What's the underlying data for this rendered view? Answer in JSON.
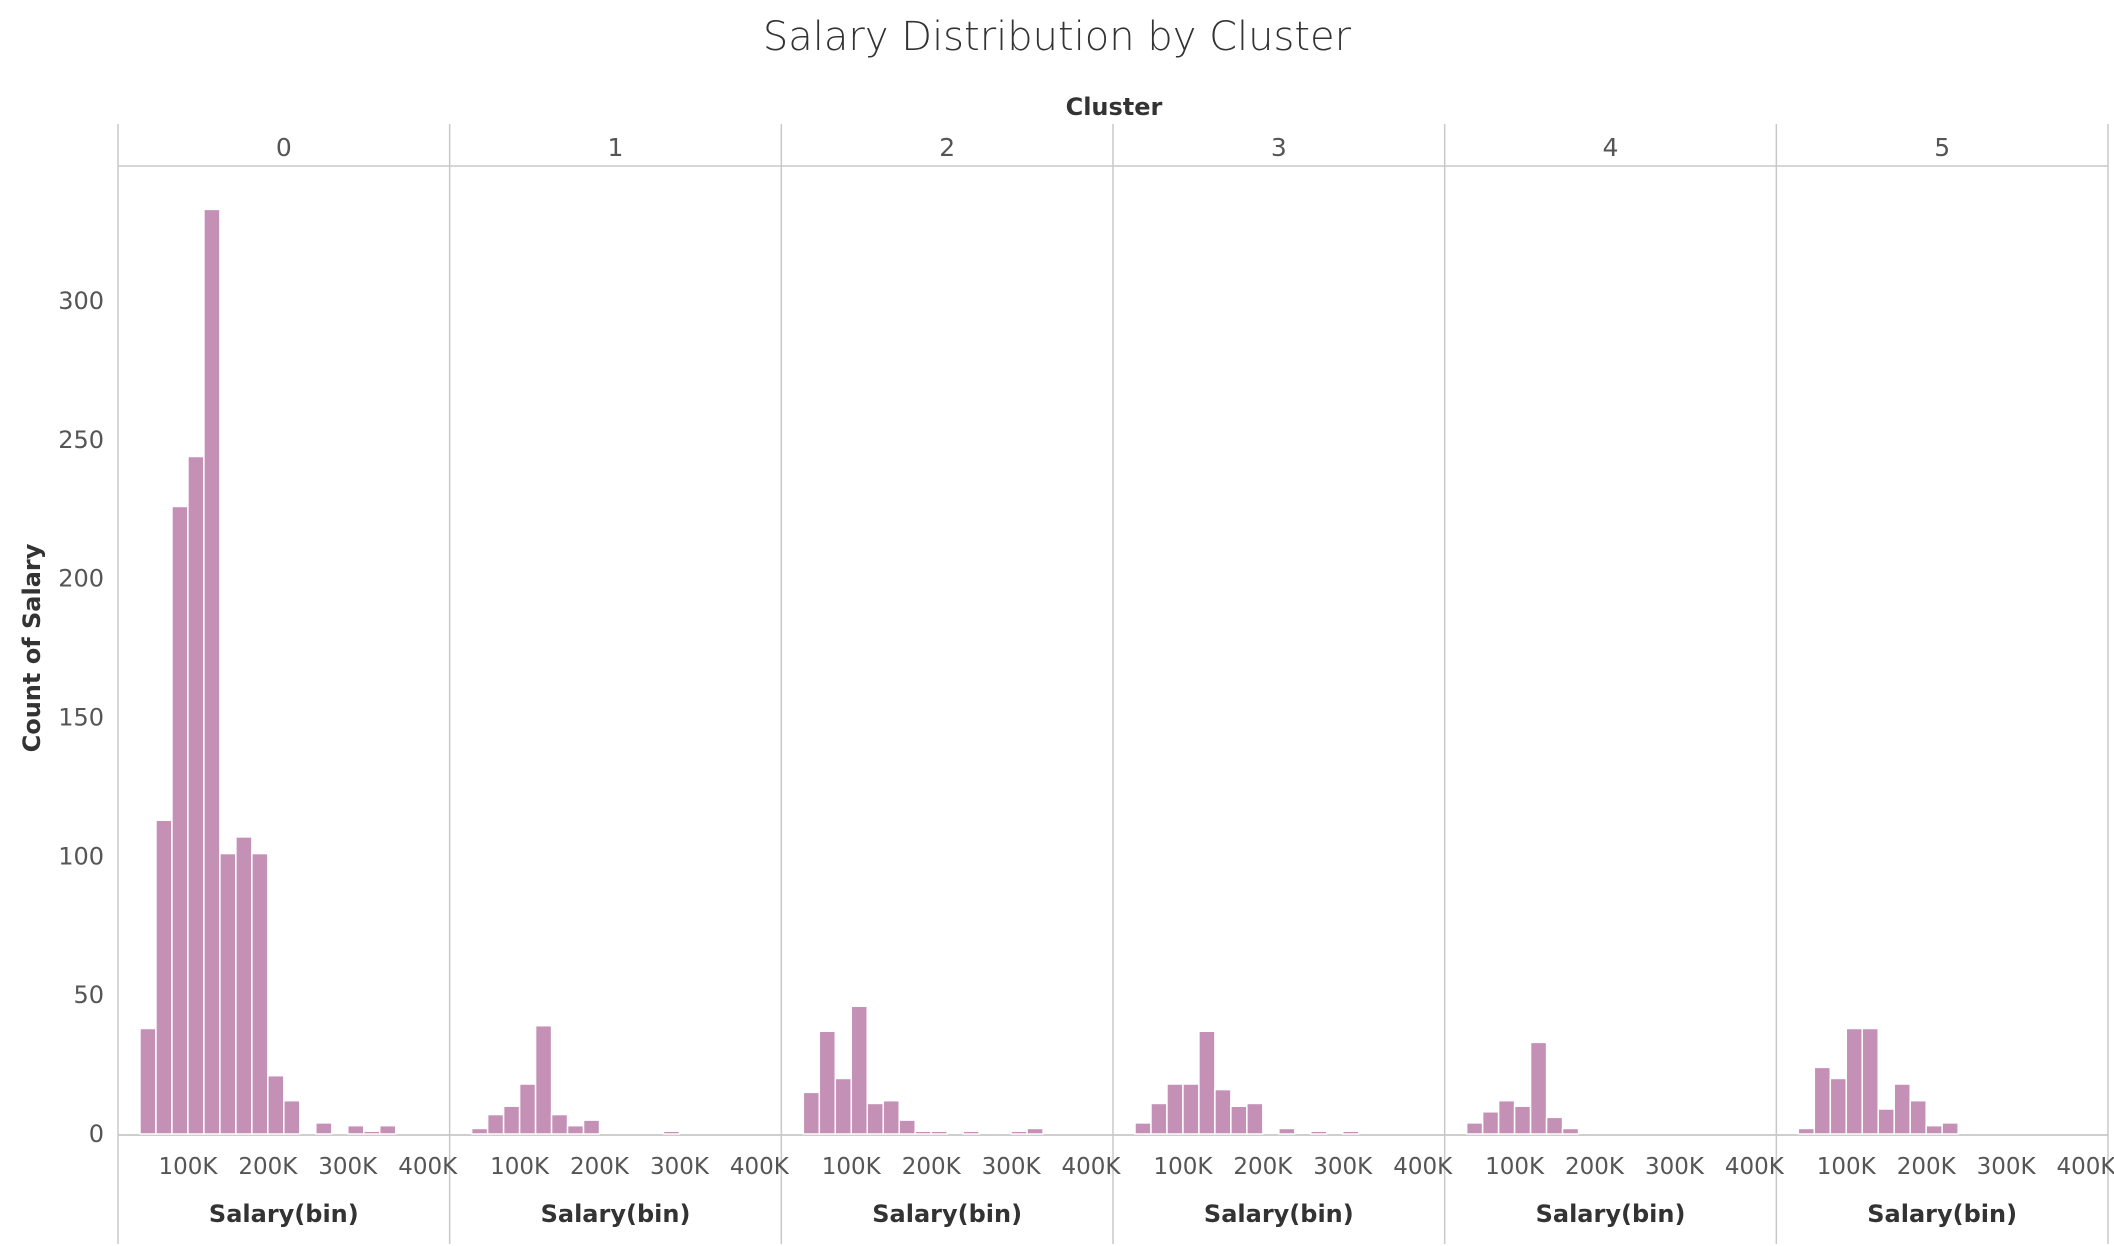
{
  "chart_data": {
    "type": "bar",
    "title": "Salary Distribution by Cluster",
    "facet_title": "Cluster",
    "ylabel": "Count of Salary",
    "xlabel": "Salary(bin)",
    "ylim": [
      0,
      340
    ],
    "y_ticks": [
      0,
      50,
      100,
      150,
      200,
      250,
      300
    ],
    "xlim": [
      20000,
      420000
    ],
    "x_ticks": [
      100000,
      200000,
      300000,
      400000
    ],
    "x_tick_labels": [
      "100K",
      "200K",
      "300K",
      "400K"
    ],
    "bin_width": 20000,
    "bin_starts": [
      40000,
      60000,
      80000,
      100000,
      120000,
      140000,
      160000,
      180000,
      200000,
      220000,
      240000,
      260000,
      280000,
      300000,
      320000,
      340000,
      360000,
      380000,
      400000
    ],
    "bar_color": "#c490b6",
    "grid": false,
    "panels": [
      {
        "name": "0",
        "values": [
          38,
          113,
          226,
          244,
          333,
          101,
          107,
          101,
          21,
          12,
          0,
          4,
          0,
          3,
          1,
          3,
          0,
          0,
          0
        ]
      },
      {
        "name": "1",
        "values": [
          2,
          7,
          10,
          18,
          39,
          7,
          3,
          5,
          0,
          0,
          0,
          0,
          1,
          0,
          0,
          0,
          0,
          0,
          0
        ]
      },
      {
        "name": "2",
        "values": [
          15,
          37,
          20,
          46,
          11,
          12,
          5,
          1,
          1,
          0,
          1,
          0,
          0,
          1,
          2,
          0,
          0,
          0,
          0
        ]
      },
      {
        "name": "3",
        "values": [
          4,
          11,
          18,
          18,
          37,
          16,
          10,
          11,
          0,
          2,
          0,
          1,
          0,
          1,
          0,
          0,
          0,
          0,
          0
        ]
      },
      {
        "name": "4",
        "values": [
          4,
          8,
          12,
          10,
          33,
          6,
          2,
          0,
          0,
          0,
          0,
          0,
          0,
          0,
          0,
          0,
          0,
          0,
          0
        ]
      },
      {
        "name": "5",
        "values": [
          2,
          24,
          20,
          38,
          38,
          9,
          18,
          12,
          3,
          4,
          0,
          0,
          0,
          0,
          0,
          0,
          0,
          0,
          0
        ]
      }
    ]
  }
}
